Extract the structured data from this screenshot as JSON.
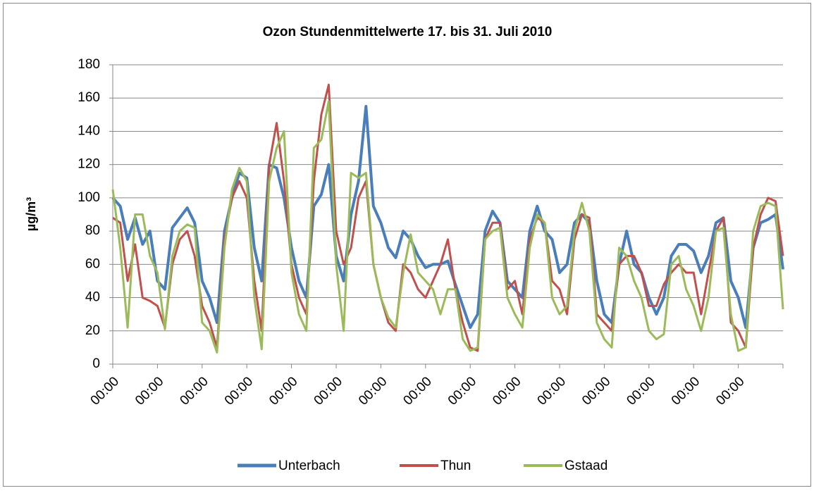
{
  "chart_data": {
    "type": "line",
    "title": "Ozon Stundenmittelwerte 17. bis 31. Juli 2010",
    "y_label": "µg/m³",
    "categories": [
      "00:00",
      null,
      null,
      null,
      null,
      null,
      "00:00",
      null,
      null,
      null,
      null,
      null,
      "00:00",
      null,
      null,
      null,
      null,
      null,
      "00:00",
      null,
      null,
      null,
      null,
      null,
      "00:00",
      null,
      null,
      null,
      null,
      null,
      "00:00",
      null,
      null,
      null,
      null,
      null,
      "00:00",
      null,
      null,
      null,
      null,
      null,
      "00:00",
      null,
      null,
      null,
      null,
      null,
      "00:00",
      null,
      null,
      null,
      null,
      null,
      "00:00",
      null,
      null,
      null,
      null,
      null,
      "00:00",
      null,
      null,
      null,
      null,
      null,
      "00:00",
      null,
      null,
      null,
      null,
      null,
      "00:00",
      null,
      null,
      null,
      null,
      null,
      "00:00",
      null,
      null,
      null,
      null,
      null,
      "00:00",
      null,
      null,
      null,
      null,
      null,
      null
    ],
    "series": [
      {
        "name": "Unterbach",
        "color": "#4a7ebb",
        "values": [
          100,
          95,
          75,
          88,
          72,
          80,
          50,
          45,
          82,
          88,
          94,
          85,
          50,
          40,
          25,
          80,
          100,
          115,
          112,
          70,
          50,
          120,
          118,
          100,
          70,
          50,
          40,
          95,
          102,
          120,
          65,
          50,
          90,
          110,
          155,
          95,
          85,
          70,
          64,
          80,
          75,
          65,
          58,
          60,
          60,
          62,
          48,
          35,
          22,
          30,
          80,
          92,
          85,
          50,
          45,
          40,
          80,
          95,
          80,
          75,
          55,
          60,
          85,
          90,
          85,
          50,
          30,
          25,
          60,
          80,
          60,
          55,
          40,
          30,
          40,
          65,
          72,
          72,
          68,
          55,
          65,
          85,
          88,
          50,
          40,
          22,
          70,
          85,
          87,
          90,
          57
        ]
      },
      {
        "name": "Thun",
        "color": "#c0504d",
        "values": [
          88,
          85,
          50,
          72,
          40,
          38,
          35,
          22,
          60,
          75,
          80,
          65,
          35,
          25,
          10,
          75,
          100,
          110,
          100,
          50,
          20,
          120,
          145,
          110,
          60,
          40,
          30,
          110,
          150,
          168,
          80,
          60,
          70,
          100,
          110,
          60,
          40,
          25,
          20,
          60,
          55,
          45,
          40,
          50,
          60,
          75,
          45,
          25,
          10,
          8,
          75,
          85,
          85,
          45,
          50,
          30,
          75,
          88,
          85,
          50,
          45,
          30,
          75,
          90,
          88,
          30,
          25,
          20,
          60,
          65,
          65,
          55,
          35,
          35,
          48,
          55,
          60,
          55,
          55,
          30,
          55,
          80,
          88,
          25,
          20,
          10,
          70,
          90,
          100,
          98,
          65
        ]
      },
      {
        "name": "Gstaad",
        "color": "#9bbb59",
        "values": [
          105,
          70,
          22,
          90,
          90,
          65,
          55,
          21,
          65,
          80,
          84,
          82,
          25,
          20,
          7,
          70,
          105,
          118,
          110,
          40,
          9,
          110,
          130,
          140,
          55,
          30,
          20,
          130,
          135,
          158,
          60,
          20,
          115,
          112,
          115,
          60,
          40,
          28,
          22,
          55,
          78,
          55,
          50,
          45,
          30,
          45,
          45,
          15,
          8,
          10,
          75,
          80,
          82,
          40,
          30,
          22,
          70,
          90,
          85,
          40,
          30,
          35,
          80,
          97,
          80,
          25,
          15,
          10,
          70,
          65,
          50,
          40,
          20,
          15,
          18,
          60,
          65,
          45,
          35,
          20,
          40,
          80,
          82,
          30,
          8,
          10,
          80,
          95,
          97,
          95,
          33
        ]
      }
    ],
    "ylim": [
      0,
      180
    ],
    "yticks": [
      0,
      20,
      40,
      60,
      80,
      100,
      120,
      140,
      160,
      180
    ],
    "grid": true,
    "legend": "bottom"
  }
}
